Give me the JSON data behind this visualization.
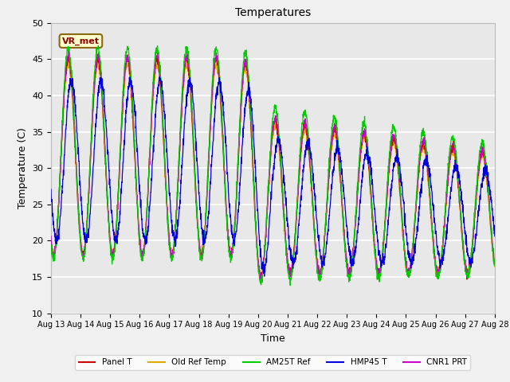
{
  "title": "Temperatures",
  "xlabel": "Time",
  "ylabel": "Temperature (C)",
  "ylim": [
    10,
    50
  ],
  "x_tick_labels": [
    "Aug 13",
    "Aug 14",
    "Aug 15",
    "Aug 16",
    "Aug 17",
    "Aug 18",
    "Aug 19",
    "Aug 20",
    "Aug 21",
    "Aug 22",
    "Aug 23",
    "Aug 24",
    "Aug 25",
    "Aug 26",
    "Aug 27",
    "Aug 28"
  ],
  "series_colors": {
    "Panel T": "#cc0000",
    "Old Ref Temp": "#ddaa00",
    "AM25T Ref": "#00cc00",
    "HMP45 T": "#0000dd",
    "CNR1 PRT": "#cc00cc"
  },
  "legend_colors": [
    "#cc0000",
    "#ddaa00",
    "#00cc00",
    "#0000dd",
    "#cc00cc"
  ],
  "legend_labels": [
    "Panel T",
    "Old Ref Temp",
    "AM25T Ref",
    "HMP45 T",
    "CNR1 PRT"
  ],
  "fig_facecolor": "#f0f0f0",
  "ax_facecolor": "#e8e8e8",
  "grid_color": "#ffffff",
  "annotation_text": "VR_met",
  "yticks": [
    10,
    15,
    20,
    25,
    30,
    35,
    40,
    45,
    50
  ]
}
